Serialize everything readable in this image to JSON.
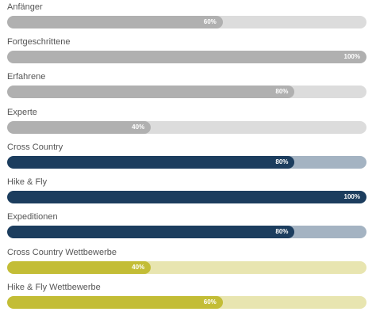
{
  "skills": [
    {
      "label": "Anfänger",
      "value_text": "60%",
      "fraction": 0.6,
      "fill_color": "#b0b0b0",
      "track_color": "#dcdcdc"
    },
    {
      "label": "Fortgeschrittene",
      "value_text": "100%",
      "fraction": 1.0,
      "fill_color": "#b0b0b0",
      "track_color": "#dcdcdc"
    },
    {
      "label": "Erfahrene",
      "value_text": "80%",
      "fraction": 0.8,
      "fill_color": "#b0b0b0",
      "track_color": "#dcdcdc"
    },
    {
      "label": "Experte",
      "value_text": "40%",
      "fraction": 0.4,
      "fill_color": "#b0b0b0",
      "track_color": "#dcdcdc"
    },
    {
      "label": "Cross Country",
      "value_text": "80%",
      "fraction": 0.8,
      "fill_color": "#1c3d5e",
      "track_color": "#a4b3c2"
    },
    {
      "label": "Hike & Fly",
      "value_text": "100%",
      "fraction": 1.0,
      "fill_color": "#1c3d5e",
      "track_color": "#a4b3c2"
    },
    {
      "label": "Expeditionen",
      "value_text": "80%",
      "fraction": 0.8,
      "fill_color": "#1c3d5e",
      "track_color": "#a4b3c2"
    },
    {
      "label": "Cross Country Wettbewerbe",
      "value_text": "40%",
      "fraction": 0.4,
      "fill_color": "#c3bd36",
      "track_color": "#e8e5b0"
    },
    {
      "label": "Hike & Fly Wettbewerbe",
      "value_text": "60%",
      "fraction": 0.6,
      "fill_color": "#c3bd36",
      "track_color": "#e8e5b0"
    }
  ]
}
